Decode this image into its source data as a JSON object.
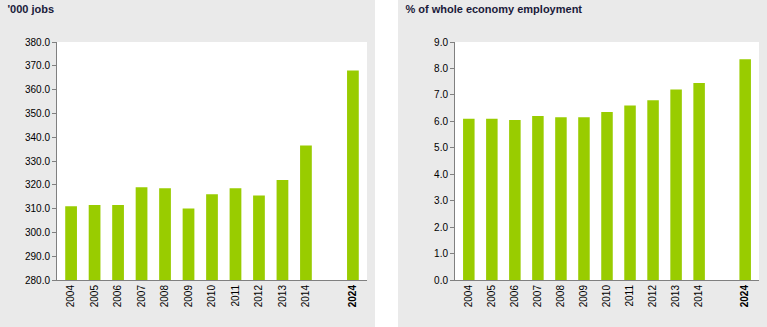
{
  "chart_data": [
    {
      "type": "bar",
      "title": "'000 jobs",
      "categories": [
        "2004",
        "2005",
        "2006",
        "2007",
        "2008",
        "2009",
        "2010",
        "2011",
        "2012",
        "2013",
        "2014",
        null,
        "2024"
      ],
      "values": [
        311,
        311.5,
        311.5,
        319,
        318.5,
        310,
        316,
        318.5,
        315.5,
        322,
        336.5,
        null,
        368
      ],
      "color": "#99cc00",
      "ylim": [
        280,
        380
      ],
      "yticks": [
        {
          "value": 280,
          "label": "280.0"
        },
        {
          "value": 290,
          "label": "290.0"
        },
        {
          "value": 300,
          "label": "300.0"
        },
        {
          "value": 310,
          "label": "310.0"
        },
        {
          "value": 320,
          "label": "320.0"
        },
        {
          "value": 330,
          "label": "330.0"
        },
        {
          "value": 340,
          "label": "340.0"
        },
        {
          "value": 350,
          "label": "350.0"
        },
        {
          "value": 360,
          "label": "360.0"
        },
        {
          "value": 370,
          "label": "370.0"
        },
        {
          "value": 380,
          "label": "380.0"
        }
      ],
      "grid": false
    },
    {
      "type": "bar",
      "title": "% of whole economy employment",
      "categories": [
        "2004",
        "2005",
        "2006",
        "2007",
        "2008",
        "2009",
        "2010",
        "2011",
        "2012",
        "2013",
        "2014",
        null,
        "2024"
      ],
      "values": [
        6.1,
        6.1,
        6.05,
        6.2,
        6.15,
        6.15,
        6.35,
        6.6,
        6.8,
        7.2,
        7.45,
        null,
        8.35
      ],
      "color": "#99cc00",
      "ylim": [
        0,
        9
      ],
      "yticks": [
        {
          "value": 0,
          "label": "0.0"
        },
        {
          "value": 1,
          "label": "1.0"
        },
        {
          "value": 2,
          "label": "2.0"
        },
        {
          "value": 3,
          "label": "3.0"
        },
        {
          "value": 4,
          "label": "4.0"
        },
        {
          "value": 5,
          "label": "5.0"
        },
        {
          "value": 6,
          "label": "6.0"
        },
        {
          "value": 7,
          "label": "7.0"
        },
        {
          "value": 8,
          "label": "8.0"
        },
        {
          "value": 9,
          "label": "9.0"
        }
      ],
      "grid": false
    }
  ]
}
